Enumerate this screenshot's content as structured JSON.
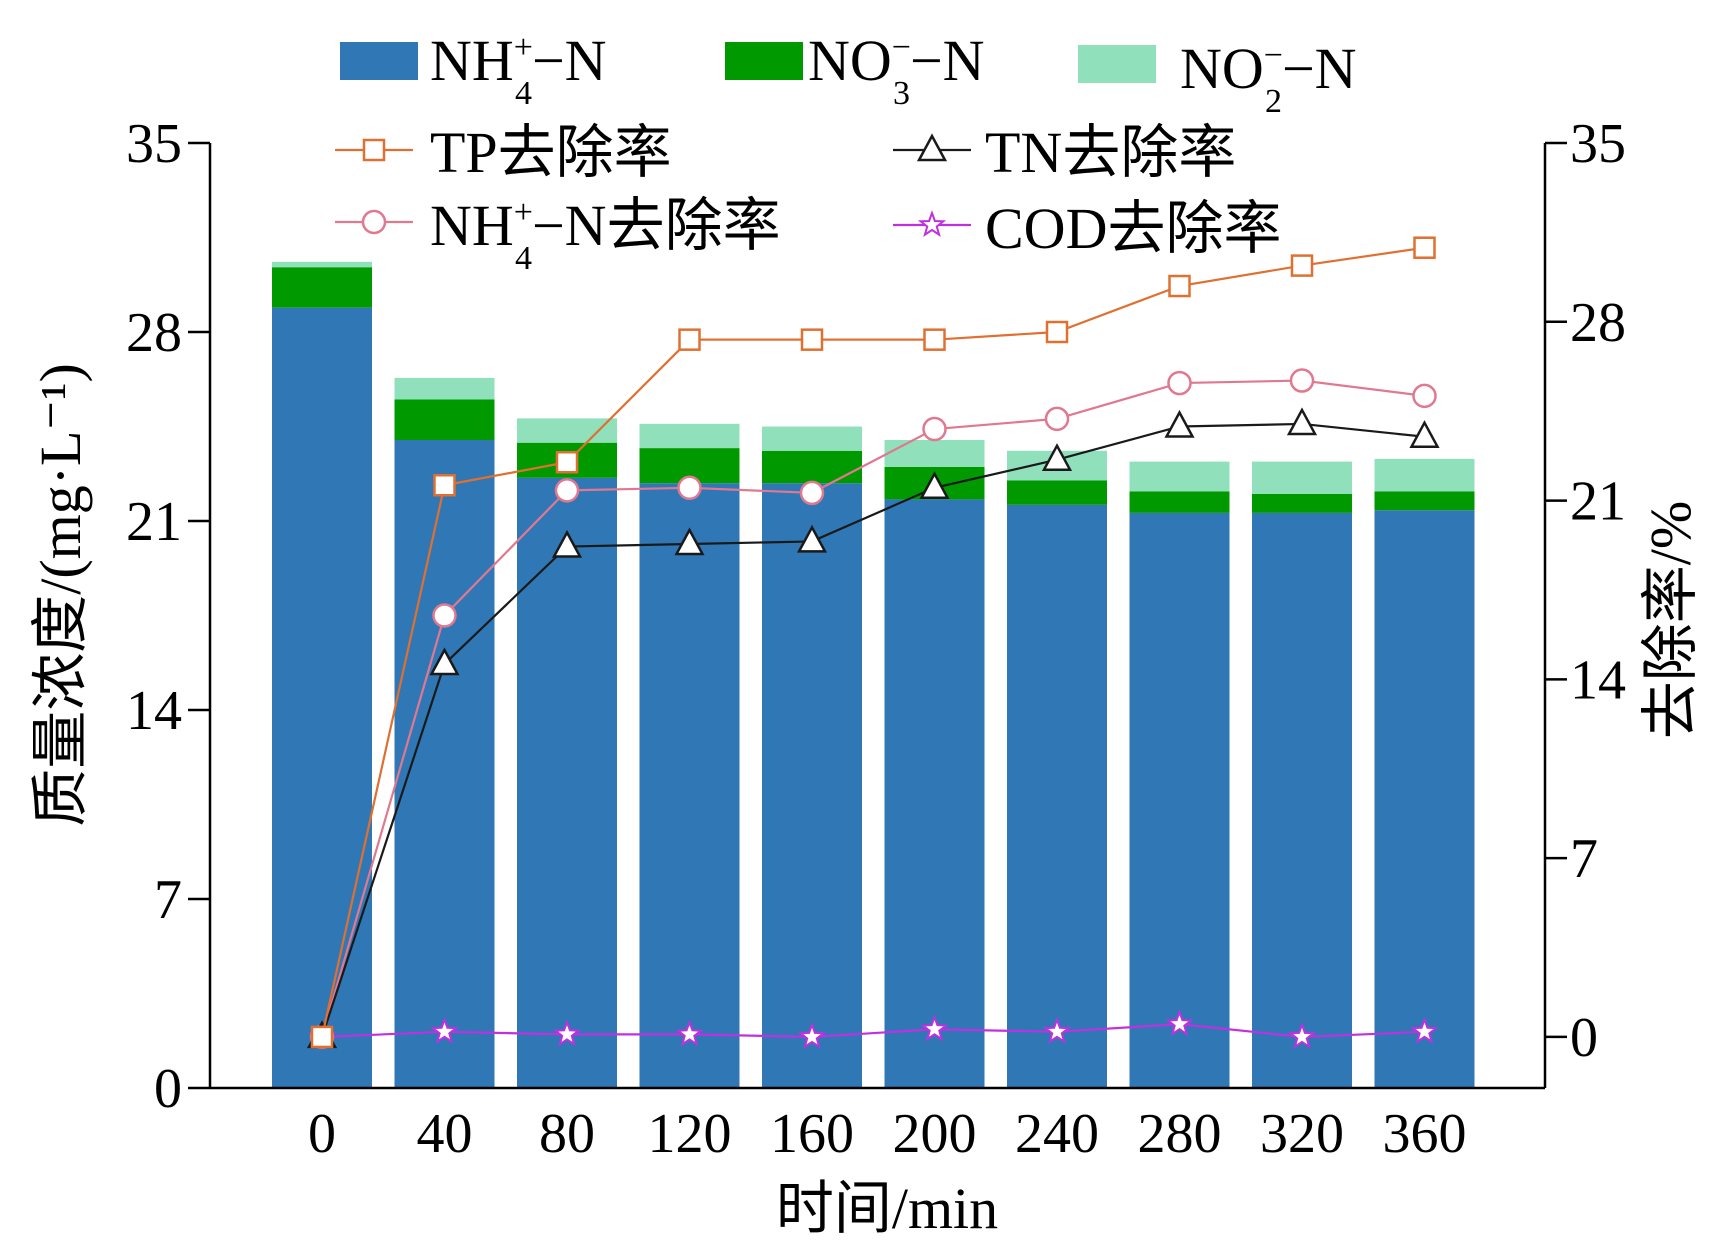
{
  "chart_data": {
    "type": "bar",
    "stacked": true,
    "xlabel": "时间/min",
    "ylabel": "质量浓度/(mg·L⁻¹)",
    "y2label": "去除率/%",
    "categories": [
      "0",
      "40",
      "80",
      "120",
      "160",
      "200",
      "240",
      "280",
      "320",
      "360"
    ],
    "ylim": [
      0,
      35
    ],
    "y2lim": [
      -2,
      35
    ],
    "yticks": [
      0,
      7,
      14,
      21,
      28,
      35
    ],
    "y2ticks": [
      0,
      7,
      14,
      21,
      28,
      35
    ],
    "bar_series": [
      {
        "name": "NH4+-N",
        "label_main": "NH",
        "label_sub": "4",
        "label_sup": "+",
        "label_tail": "−N",
        "color": "#3077b5",
        "values": [
          28.9,
          24.0,
          22.6,
          22.4,
          22.4,
          21.8,
          21.6,
          21.3,
          21.3,
          21.4
        ]
      },
      {
        "name": "NO3--N",
        "label_main": "NO",
        "label_sub": "3",
        "label_sup": "−",
        "label_tail": "−N",
        "color": "#009a00",
        "values": [
          1.5,
          1.5,
          1.3,
          1.3,
          1.2,
          1.2,
          0.9,
          0.8,
          0.7,
          0.7
        ]
      },
      {
        "name": "NO2--N",
        "label_main": "NO",
        "label_sub": "2",
        "label_sup": "−",
        "label_tail": "−N",
        "color": "#90e0bc",
        "values": [
          0.2,
          0.8,
          0.9,
          0.9,
          0.9,
          1.0,
          1.1,
          1.1,
          1.2,
          1.2
        ]
      }
    ],
    "line_series": [
      {
        "name": "TP去除率",
        "label_main": "TP去除率",
        "marker": "square",
        "color": "#e07030",
        "fill": "#ffffff",
        "values": [
          0,
          21.6,
          22.5,
          27.3,
          27.3,
          27.3,
          27.6,
          29.4,
          30.2,
          30.9
        ]
      },
      {
        "name": "TN去除率",
        "label_main": "TN去除率",
        "marker": "triangle",
        "color": "#1a1a1a",
        "fill": "#ffffff",
        "values": [
          0,
          14.6,
          19.2,
          19.3,
          19.4,
          21.5,
          22.6,
          23.9,
          24.0,
          23.5
        ]
      },
      {
        "name": "NH4+-N去除率",
        "label_main": "NH",
        "label_sub": "4",
        "label_sup": "+",
        "label_tail": "−N去除率",
        "marker": "circle",
        "color": "#e07890",
        "fill": "#ffffff",
        "values": [
          0,
          16.5,
          21.4,
          21.5,
          21.3,
          23.8,
          24.2,
          25.6,
          25.7,
          25.1
        ]
      },
      {
        "name": "COD去除率",
        "label_main": "COD去除率",
        "marker": "star",
        "color": "#c030e0",
        "fill": "#ffffff",
        "values": [
          0,
          0.2,
          0.1,
          0.1,
          0.0,
          0.3,
          0.2,
          0.5,
          0.0,
          0.2
        ]
      }
    ],
    "legend_position": "top"
  }
}
